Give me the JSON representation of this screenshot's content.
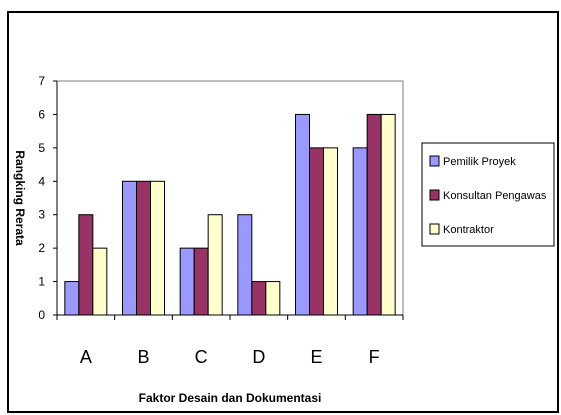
{
  "chart_data": {
    "type": "bar",
    "title": "",
    "xlabel": "Faktor Desain dan Dokumentasi",
    "ylabel": "Rangking Rerata",
    "categories": [
      "A",
      "B",
      "C",
      "D",
      "E",
      "F"
    ],
    "ylim": [
      0,
      7
    ],
    "yticks": [
      "0",
      "1",
      "2",
      "3",
      "4",
      "5",
      "6",
      "7"
    ],
    "grid": false,
    "legend_position": "right",
    "series": [
      {
        "name": "Pemilik Proyek",
        "color": "#9999ff",
        "values": [
          1,
          4,
          2,
          3,
          6,
          5
        ]
      },
      {
        "name": "Konsultan Pengawas",
        "color": "#993366",
        "values": [
          3,
          4,
          2,
          1,
          5,
          6
        ]
      },
      {
        "name": "Kontraktor",
        "color": "#ffffcc",
        "values": [
          2,
          4,
          3,
          1,
          5,
          6
        ]
      }
    ]
  }
}
